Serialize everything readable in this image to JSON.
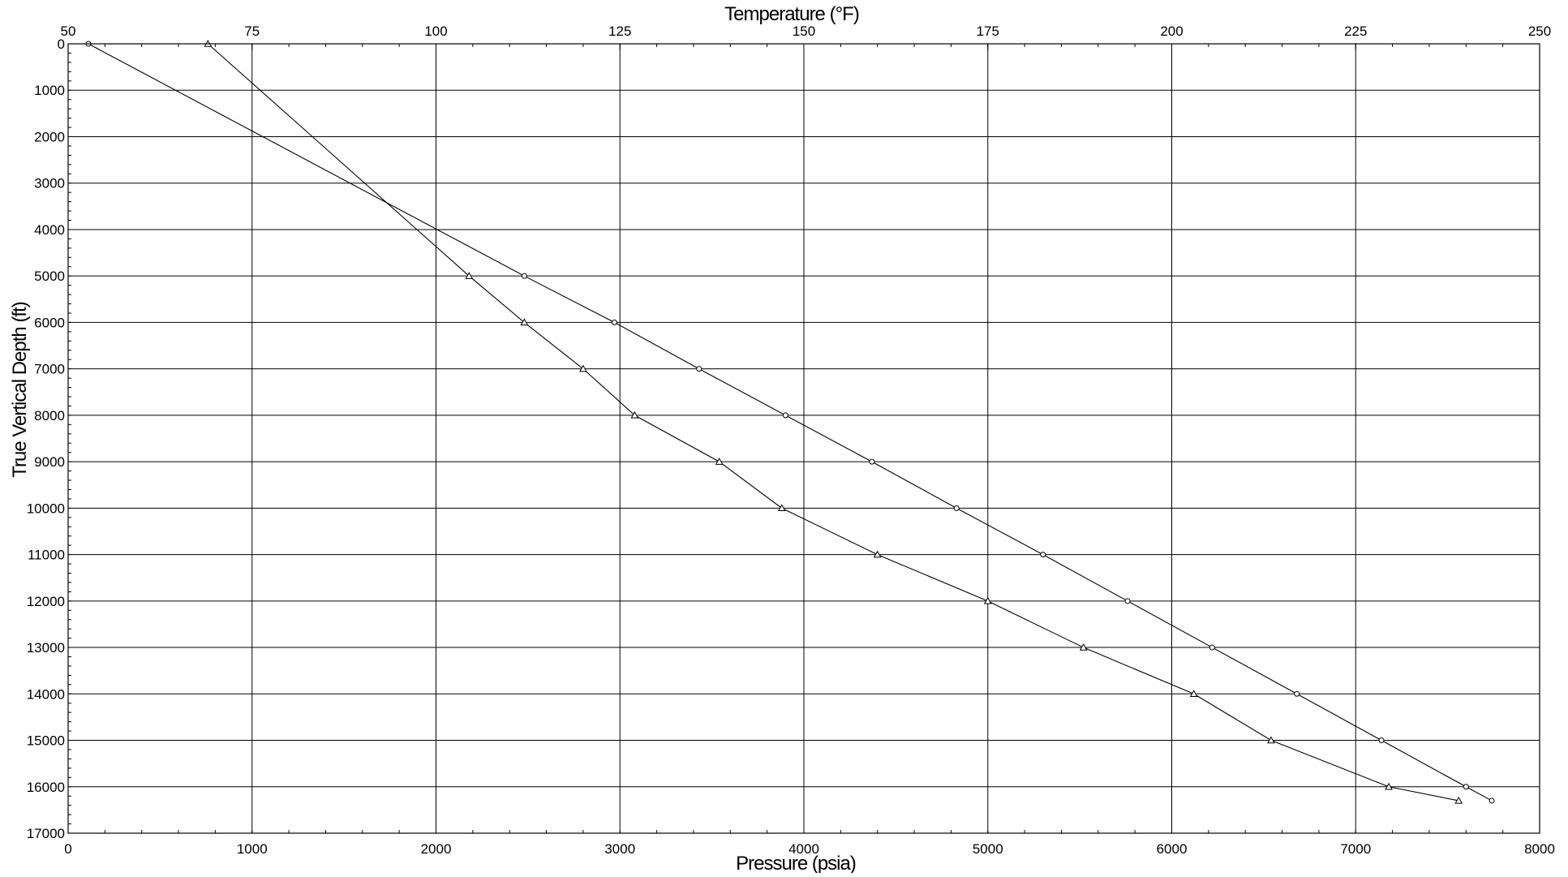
{
  "chart_data": {
    "type": "line",
    "top_axis": {
      "label": "Temperature (°F)",
      "range": [
        50,
        250
      ],
      "ticks": [
        50,
        75,
        100,
        125,
        150,
        175,
        200,
        225,
        250
      ],
      "tick_labels": [
        "50",
        "75",
        "100",
        "125",
        "150",
        "175",
        "200",
        "225",
        "250"
      ]
    },
    "bottom_axis": {
      "label": "Pressure (psia)",
      "range": [
        0,
        8000
      ],
      "ticks": [
        0,
        1000,
        2000,
        3000,
        4000,
        5000,
        6000,
        7000,
        8000
      ],
      "tick_labels": [
        "0",
        "1000",
        "2000",
        "3000",
        "4000",
        "5000",
        "6000",
        "7000",
        "8000"
      ]
    },
    "y_axis": {
      "label": "True Vertical Depth (ft)",
      "range": [
        0,
        17000
      ],
      "inverted": true,
      "ticks": [
        0,
        1000,
        2000,
        3000,
        4000,
        5000,
        6000,
        7000,
        8000,
        9000,
        10000,
        11000,
        12000,
        13000,
        14000,
        15000,
        16000,
        17000
      ],
      "tick_labels": [
        "0",
        "1000",
        "2000",
        "3000",
        "4000",
        "5000",
        "6000",
        "7000",
        "8000",
        "9000",
        "10000",
        "11000",
        "12000",
        "13000",
        "14000",
        "15000",
        "16000",
        "17000"
      ]
    },
    "grid": true,
    "legend": "none",
    "series": [
      {
        "axis": "pressure",
        "marker": "circle",
        "points": [
          [
            110,
            0
          ],
          [
            2480,
            5000
          ],
          [
            2970,
            6000
          ],
          [
            3430,
            7000
          ],
          [
            3900,
            8000
          ],
          [
            4370,
            9000
          ],
          [
            4830,
            10000
          ],
          [
            5300,
            11000
          ],
          [
            5760,
            12000
          ],
          [
            6220,
            13000
          ],
          [
            6680,
            14000
          ],
          [
            7140,
            15000
          ],
          [
            7600,
            16000
          ],
          [
            7740,
            16300
          ]
        ]
      },
      {
        "axis": "temperature",
        "marker": "triangle",
        "points": [
          [
            69,
            0
          ],
          [
            104.5,
            5000
          ],
          [
            112,
            6000
          ],
          [
            120,
            7000
          ],
          [
            127,
            8000
          ],
          [
            138.5,
            9000
          ],
          [
            147,
            10000
          ],
          [
            160,
            11000
          ],
          [
            175,
            12000
          ],
          [
            188,
            13000
          ],
          [
            203,
            14000
          ],
          [
            213.5,
            15000
          ],
          [
            229.5,
            16000
          ],
          [
            239,
            16300
          ]
        ]
      }
    ]
  }
}
